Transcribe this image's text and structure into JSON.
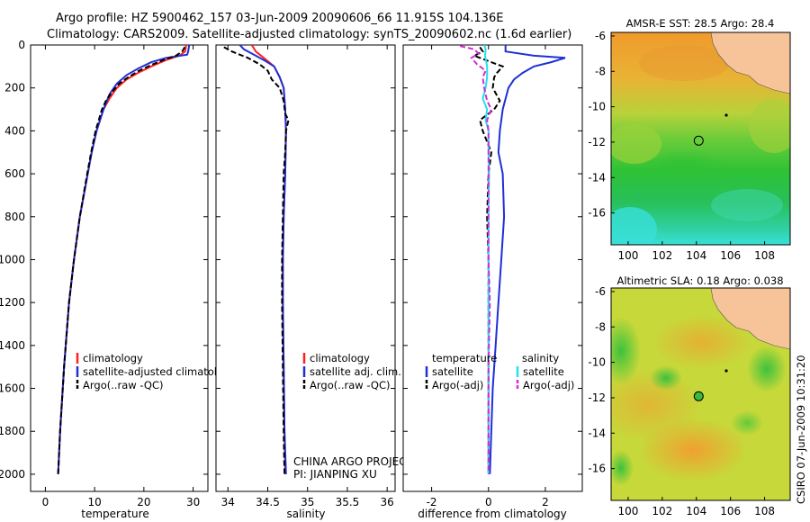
{
  "header": {
    "line1": "Argo profile: HZ 5900462_157 03-Jun-2009 20090606_66 11.915S 104.136E",
    "line2": "Climatology: CARS2009. Satellite-adjusted climatology: synTS_20090602.nc (1.6d earlier)"
  },
  "side_stamp": "CSIRO 07-Jun-2009 10:31:20",
  "colors": {
    "climatology": "#ff2020",
    "satellite": "#1f2fd6",
    "argo": "#000000",
    "sal_satellite": "#22e0ee",
    "sal_argo": "#d62bd6"
  },
  "chart_data": [
    {
      "type": "line",
      "name": "temperature-profile",
      "xlabel": "temperature",
      "ylabel": "",
      "xlim": [
        -3,
        33
      ],
      "ylim": [
        2080,
        0
      ],
      "xticks": [
        0,
        10,
        20,
        30
      ],
      "yticks": [
        0,
        200,
        400,
        600,
        800,
        1000,
        1200,
        1400,
        1600,
        1800,
        2000
      ],
      "legend": [
        "climatology",
        "satellite-adjusted climatology",
        "Argo(..raw -QC)"
      ],
      "legend_position": "lower-middle",
      "series": [
        {
          "name": "climatology",
          "color_key": "climatology",
          "dash": "solid",
          "depth": [
            0,
            30,
            50,
            70,
            100,
            130,
            160,
            200,
            250,
            300,
            400,
            500,
            600,
            800,
            1000,
            1200,
            1500,
            1800,
            2000
          ],
          "values": [
            28.6,
            28.4,
            27.2,
            24.5,
            21.5,
            18.8,
            16.5,
            14.5,
            13.0,
            11.8,
            10.4,
            9.4,
            8.6,
            7.0,
            5.8,
            4.8,
            3.8,
            3.0,
            2.6
          ]
        },
        {
          "name": "satellite-adjusted climatology",
          "color_key": "satellite",
          "dash": "solid",
          "depth": [
            0,
            30,
            45,
            60,
            80,
            110,
            140,
            180,
            230,
            300,
            400,
            500,
            600,
            800,
            1000,
            1200,
            1500,
            1800,
            2000
          ],
          "values": [
            29.2,
            29.0,
            28.8,
            24.5,
            21.5,
            18.8,
            16.5,
            14.5,
            13.0,
            11.8,
            10.4,
            9.4,
            8.6,
            7.0,
            5.8,
            4.8,
            3.8,
            3.0,
            2.6
          ]
        },
        {
          "name": "Argo(..raw -QC)",
          "color_key": "argo",
          "dash": "dashed",
          "depth": [
            10,
            30,
            50,
            70,
            90,
            120,
            150,
            180,
            220,
            260,
            300,
            400,
            500,
            600,
            800,
            1000,
            1200,
            1500,
            1800,
            2000
          ],
          "values": [
            28.3,
            27.8,
            26.5,
            24.0,
            21.8,
            19.0,
            16.8,
            15.0,
            13.5,
            12.3,
            11.5,
            10.2,
            9.3,
            8.5,
            7.0,
            5.8,
            4.8,
            3.8,
            3.0,
            2.6
          ]
        }
      ]
    },
    {
      "type": "line",
      "name": "salinity-profile",
      "xlabel": "salinity",
      "xlim": [
        33.85,
        36.1
      ],
      "ylim": [
        2080,
        0
      ],
      "xticks": [
        34,
        34.5,
        35,
        35.5,
        36
      ],
      "yticks": [
        0,
        200,
        400,
        600,
        800,
        1000,
        1200,
        1400,
        1600,
        1800,
        2000
      ],
      "legend": [
        "climatology",
        "satellite adj. clim.",
        "Argo(..raw -QC)"
      ],
      "legend_position": "lower-right",
      "annotations": [
        "CHINA ARGO PROJECT",
        "PI: JIANPING XU"
      ],
      "series": [
        {
          "name": "climatology",
          "color_key": "climatology",
          "dash": "solid",
          "depth": [
            0,
            30,
            60,
            100,
            150,
            200,
            300,
            400,
            600,
            800,
            1000,
            1200,
            1500,
            1800,
            2000
          ],
          "values": [
            34.3,
            34.35,
            34.45,
            34.58,
            34.65,
            34.7,
            34.72,
            34.73,
            34.72,
            34.7,
            34.69,
            34.69,
            34.7,
            34.71,
            34.72
          ]
        },
        {
          "name": "satellite adj. clim.",
          "color_key": "satellite",
          "dash": "solid",
          "depth": [
            0,
            20,
            40,
            70,
            100,
            150,
            200,
            300,
            400,
            600,
            800,
            1000,
            1200,
            1500,
            1800,
            2000
          ],
          "values": [
            34.15,
            34.2,
            34.3,
            34.45,
            34.58,
            34.65,
            34.7,
            34.72,
            34.73,
            34.72,
            34.7,
            34.69,
            34.69,
            34.7,
            34.71,
            34.73
          ]
        },
        {
          "name": "Argo(..raw -QC)",
          "color_key": "argo",
          "dash": "dashed",
          "depth": [
            10,
            30,
            60,
            90,
            120,
            160,
            200,
            260,
            320,
            350,
            400,
            500,
            600,
            800,
            1000,
            1200,
            1500,
            1800,
            2000
          ],
          "values": [
            33.95,
            34.05,
            34.25,
            34.4,
            34.5,
            34.55,
            34.65,
            34.7,
            34.72,
            34.76,
            34.73,
            34.72,
            34.7,
            34.69,
            34.68,
            34.68,
            34.69,
            34.7,
            34.71
          ]
        }
      ]
    },
    {
      "type": "line",
      "name": "difference-profile",
      "xlabel": "difference from climatology",
      "xlim": [
        -3,
        3.3
      ],
      "ylim": [
        2080,
        0
      ],
      "xticks": [
        -2,
        0,
        2
      ],
      "yticks": [
        0,
        200,
        400,
        600,
        800,
        1000,
        1200,
        1400,
        1600,
        1800,
        2000
      ],
      "legend_groups": [
        {
          "title": "temperature",
          "entries": [
            "satellite",
            "Argo(-adj)"
          ]
        },
        {
          "title": "salinity",
          "entries": [
            "satellite",
            "Argo(-adj)"
          ]
        }
      ],
      "legend_position": "lower-middle",
      "series": [
        {
          "name": "temperature satellite",
          "color_key": "satellite",
          "dash": "solid",
          "depth": [
            0,
            30,
            50,
            60,
            80,
            100,
            130,
            160,
            200,
            300,
            400,
            500,
            600,
            800,
            1000,
            1200,
            1400,
            1600,
            1800,
            2000
          ],
          "values": [
            0.6,
            0.6,
            1.6,
            2.7,
            2.2,
            1.6,
            1.2,
            0.9,
            0.7,
            0.5,
            0.4,
            0.35,
            0.5,
            0.55,
            0.45,
            0.35,
            0.25,
            0.15,
            0.1,
            0.05
          ]
        },
        {
          "name": "temperature Argo(-adj)",
          "color_key": "argo",
          "dash": "dashed",
          "depth": [
            10,
            30,
            50,
            70,
            100,
            130,
            150,
            200,
            260,
            300,
            350,
            400,
            500,
            600,
            800,
            1000,
            1200,
            1500,
            2000
          ],
          "values": [
            -0.3,
            -0.2,
            -0.5,
            -0.1,
            0.5,
            0.3,
            0.2,
            0.15,
            0.4,
            0.2,
            -0.3,
            -0.2,
            0.1,
            0.0,
            -0.05,
            0.0,
            0.0,
            0.0,
            0.0
          ]
        },
        {
          "name": "salinity satellite",
          "color_key": "sal_satellite",
          "dash": "solid",
          "depth": [
            0,
            20,
            50,
            100,
            150,
            200,
            250,
            300,
            350,
            400,
            500,
            600,
            800,
            1000,
            1200,
            1500,
            2000
          ],
          "values": [
            -0.15,
            -0.1,
            -0.12,
            -0.05,
            -0.05,
            -0.1,
            -0.2,
            -0.05,
            -0.1,
            0.0,
            0.0,
            0.02,
            0.0,
            0.0,
            0.0,
            0.0,
            0.0
          ]
        },
        {
          "name": "salinity Argo(-adj)",
          "color_key": "sal_argo",
          "dash": "dashed",
          "depth": [
            5,
            20,
            40,
            60,
            90,
            120,
            150,
            200,
            260,
            300,
            350,
            400,
            500,
            600,
            800,
            1000,
            1200,
            1500,
            1800,
            2000
          ],
          "values": [
            -1.0,
            -0.5,
            -0.35,
            -0.6,
            -0.4,
            -0.1,
            -0.2,
            -0.15,
            -0.05,
            0.1,
            -0.05,
            0.0,
            0.0,
            0.0,
            0.0,
            0.0,
            0.05,
            0.0,
            0.0,
            0.0
          ]
        }
      ]
    },
    {
      "type": "heatmap",
      "name": "sst-map",
      "title": "AMSR-E SST: 28.5  Argo: 28.4",
      "xlim": [
        99,
        109.5
      ],
      "ylim": [
        -17.8,
        -5.8
      ],
      "xticks": [
        100,
        102,
        104,
        106,
        108
      ],
      "yticks": [
        -6,
        -8,
        -10,
        -12,
        -14,
        -16
      ],
      "argo_point": {
        "lon": 104.136,
        "lat": -11.915,
        "filled": false
      },
      "island_point": {
        "lon": 105.7,
        "lat": -10.5
      }
    },
    {
      "type": "heatmap",
      "name": "sla-map",
      "title": "Altimetric SLA: 0.18  Argo: 0.038",
      "xlim": [
        99,
        109.5
      ],
      "ylim": [
        -17.8,
        -5.8
      ],
      "xticks": [
        100,
        102,
        104,
        106,
        108
      ],
      "yticks": [
        -6,
        -8,
        -10,
        -12,
        -14,
        -16
      ],
      "argo_point": {
        "lon": 104.136,
        "lat": -11.915,
        "filled": true
      },
      "island_point": {
        "lon": 105.7,
        "lat": -10.5
      }
    }
  ]
}
